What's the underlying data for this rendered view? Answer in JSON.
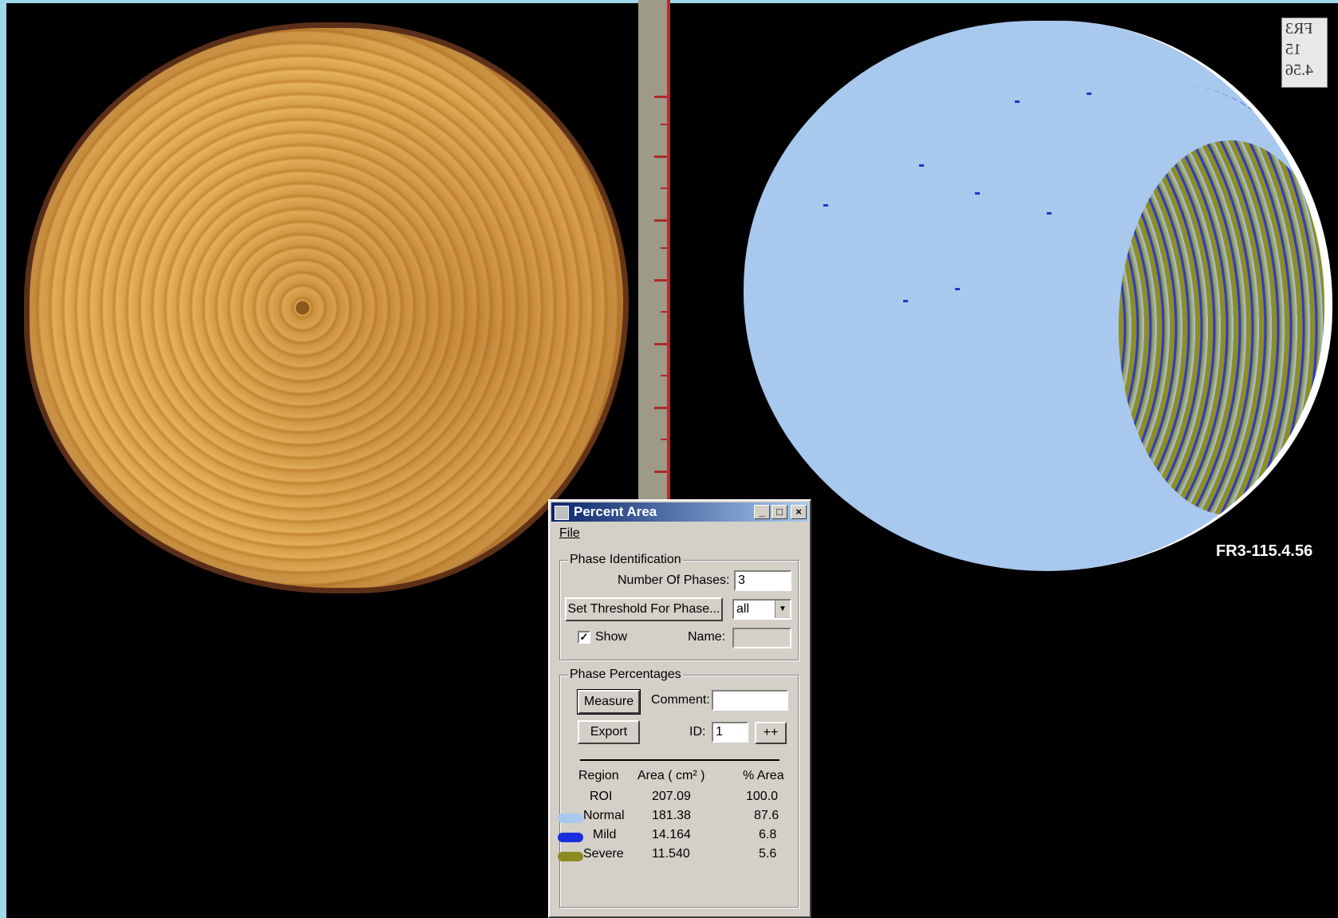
{
  "background": {
    "sample_id": "FR3-115.4.56",
    "label_card_text": [
      "FR3",
      "15",
      "4.56"
    ]
  },
  "dialog": {
    "title": "Percent Area",
    "window_buttons": {
      "minimize": "_",
      "maximize": "□",
      "close": "×"
    },
    "menu": {
      "file": "File"
    },
    "phase_identification": {
      "group_label": "Phase Identification",
      "number_of_phases_label": "Number Of Phases:",
      "number_of_phases_value": "3",
      "set_threshold_button": "Set Threshold For Phase...",
      "phase_select_value": "all",
      "show_label": "Show",
      "show_checked": true,
      "name_label": "Name:",
      "name_value": ""
    },
    "phase_percentages": {
      "group_label": "Phase Percentages",
      "measure_button": "Measure",
      "export_button": "Export",
      "comment_label": "Comment:",
      "comment_value": "",
      "id_label": "ID:",
      "id_value": "1",
      "increment_button": "++",
      "headers": {
        "region": "Region",
        "area": "Area ( cm² )",
        "percent": "% Area"
      },
      "rows": [
        {
          "region": "ROI",
          "area": "207.09",
          "percent": "100.0",
          "color": ""
        },
        {
          "region": "Normal",
          "area": "181.38",
          "percent": "87.6",
          "color": "#a8c8ee"
        },
        {
          "region": "Mild",
          "area": "14.164",
          "percent": "6.8",
          "color": "#1a2ee0"
        },
        {
          "region": "Severe",
          "area": "11.540",
          "percent": "5.6",
          "color": "#8c8a1e"
        }
      ]
    }
  }
}
